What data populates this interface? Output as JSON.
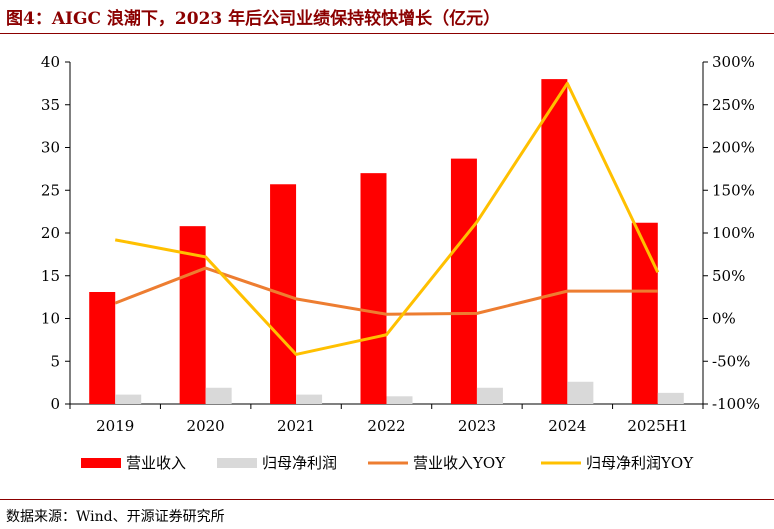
{
  "title": "图4：AIGC 浪潮下，2023 年后公司业绩保持较快增长（亿元）",
  "source": "数据来源：Wind、开源证券研究所",
  "chart_data": {
    "type": "bar",
    "title": "图4：AIGC 浪潮下，2023 年后公司业绩保持较快增长（亿元）",
    "categories": [
      "2019",
      "2020",
      "2021",
      "2022",
      "2023",
      "2024",
      "2025H1"
    ],
    "left_axis": {
      "min": 0,
      "max": 40,
      "step": 5,
      "ticks": [
        "0",
        "5",
        "10",
        "15",
        "20",
        "25",
        "30",
        "35",
        "40"
      ]
    },
    "right_axis": {
      "min": -100,
      "max": 300,
      "step": 50,
      "ticks": [
        "-100%",
        "-50%",
        "0%",
        "50%",
        "100%",
        "150%",
        "200%",
        "250%",
        "300%"
      ]
    },
    "series": [
      {
        "name": "营业收入",
        "kind": "bar",
        "axis": "left",
        "color": "#ff0000",
        "values": [
          13.1,
          20.8,
          25.7,
          27.0,
          28.7,
          38.0,
          21.2
        ]
      },
      {
        "name": "归母净利润",
        "kind": "bar",
        "axis": "left",
        "color": "#d9d9d9",
        "values": [
          1.1,
          1.9,
          1.1,
          0.9,
          1.9,
          2.6,
          1.3
        ]
      },
      {
        "name": "营业收入YOY",
        "kind": "line",
        "axis": "right",
        "color": "#ed7d31",
        "values": [
          18,
          59,
          23,
          5,
          6,
          32,
          32
        ]
      },
      {
        "name": "归母净利润YOY",
        "kind": "line",
        "axis": "right",
        "color": "#ffc000",
        "values": [
          92,
          72,
          -42,
          -19,
          113,
          275,
          54
        ]
      }
    ],
    "legend_position": "bottom",
    "grid": false
  }
}
